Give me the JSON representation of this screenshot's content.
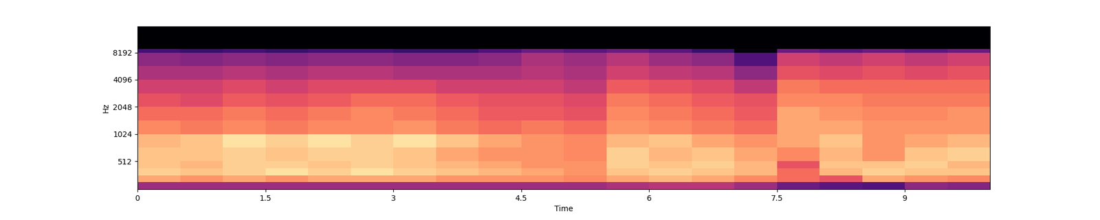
{
  "chart_data": {
    "type": "heatmap",
    "xlabel": "Time",
    "ylabel": "Hz",
    "xlim": [
      0,
      10
    ],
    "xticks": [
      0,
      1.5,
      3,
      4.5,
      6,
      7.5,
      9
    ],
    "ylim": [
      0,
      16000
    ],
    "yticks": [
      512,
      1024,
      2048,
      4096,
      8192
    ],
    "log": "y",
    "color": "magma",
    "color_range": [
      -80,
      0
    ],
    "x_edges": [
      0,
      0.5,
      1,
      1.5,
      2,
      2.5,
      3,
      3.5,
      4,
      4.5,
      5,
      5.5,
      6,
      6.5,
      7,
      7.5,
      8,
      8.5,
      9,
      9.5,
      10
    ],
    "y_edges": [
      0,
      128,
      256,
      384,
      512,
      768,
      1024,
      1448,
      2048,
      2896,
      4096,
      5793,
      8192,
      9000,
      16000
    ],
    "cells": [
      [
        -45,
        -45,
        -45,
        -45,
        -45,
        -45,
        -45,
        -45,
        -45,
        -45,
        -45,
        -42,
        -40,
        -40,
        -45,
        -55,
        -58,
        -60,
        -48,
        -50
      ],
      [
        -15,
        -18,
        -15,
        -18,
        -15,
        -15,
        -15,
        -18,
        -18,
        -18,
        -20,
        -15,
        -12,
        -15,
        -20,
        -25,
        -30,
        -15,
        -18,
        -20
      ],
      [
        -8,
        -10,
        -8,
        -5,
        -8,
        -5,
        -8,
        -10,
        -12,
        -15,
        -18,
        -10,
        -8,
        -10,
        -12,
        -25,
        -12,
        -8,
        -10,
        -10
      ],
      [
        -10,
        -12,
        -8,
        -8,
        -10,
        -8,
        -10,
        -12,
        -15,
        -18,
        -18,
        -8,
        -10,
        -8,
        -12,
        -30,
        -10,
        -10,
        -8,
        -12
      ],
      [
        -10,
        -10,
        -8,
        -10,
        -8,
        -8,
        -10,
        -15,
        -18,
        -18,
        -20,
        -8,
        -12,
        -10,
        -15,
        -20,
        -12,
        -18,
        -10,
        -8
      ],
      [
        -12,
        -10,
        -5,
        -8,
        -5,
        -8,
        -5,
        -10,
        -15,
        -18,
        -20,
        -12,
        -10,
        -15,
        -18,
        -15,
        -10,
        -18,
        -15,
        -12
      ],
      [
        -20,
        -22,
        -20,
        -22,
        -20,
        -20,
        -18,
        -22,
        -25,
        -22,
        -25,
        -18,
        -20,
        -22,
        -25,
        -15,
        -15,
        -18,
        -18,
        -18
      ],
      [
        -25,
        -25,
        -22,
        -25,
        -22,
        -20,
        -22,
        -25,
        -28,
        -28,
        -30,
        -20,
        -22,
        -25,
        -28,
        -15,
        -18,
        -20,
        -20,
        -18
      ],
      [
        -30,
        -32,
        -28,
        -30,
        -28,
        -25,
        -25,
        -28,
        -30,
        -30,
        -32,
        -22,
        -25,
        -28,
        -30,
        -20,
        -20,
        -22,
        -22,
        -22
      ],
      [
        -35,
        -35,
        -32,
        -35,
        -32,
        -32,
        -32,
        -35,
        -35,
        -35,
        -38,
        -28,
        -30,
        -32,
        -38,
        -22,
        -25,
        -25,
        -25,
        -25
      ],
      [
        -42,
        -42,
        -40,
        -42,
        -40,
        -40,
        -42,
        -42,
        -42,
        -40,
        -42,
        -35,
        -38,
        -40,
        -48,
        -30,
        -32,
        -30,
        -32,
        -30
      ],
      [
        -48,
        -50,
        -48,
        -50,
        -48,
        -48,
        -50,
        -50,
        -48,
        -42,
        -45,
        -40,
        -45,
        -48,
        -60,
        -35,
        -38,
        -35,
        -38,
        -35
      ],
      [
        -62,
        -65,
        -62,
        -65,
        -62,
        -62,
        -65,
        -65,
        -60,
        -55,
        -58,
        -55,
        -58,
        -65,
        -78,
        -55,
        -58,
        -55,
        -58,
        -55
      ],
      [
        -80,
        -80,
        -80,
        -80,
        -80,
        -80,
        -80,
        -80,
        -80,
        -80,
        -80,
        -80,
        -80,
        -80,
        -80,
        -80,
        -80,
        -80,
        -80,
        -80
      ]
    ]
  }
}
